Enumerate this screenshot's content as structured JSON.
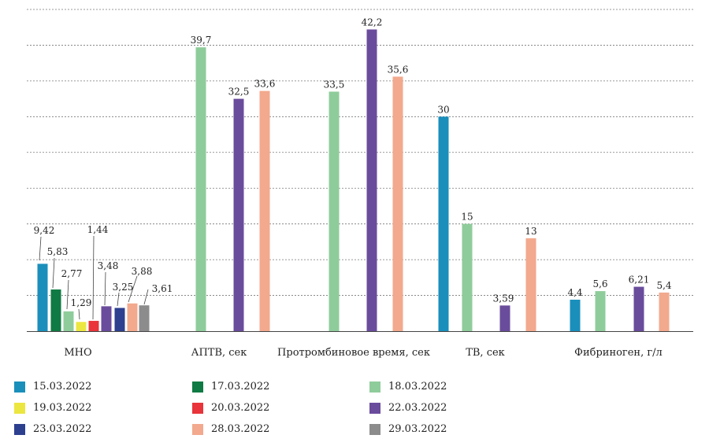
{
  "chart_data": {
    "type": "bar",
    "title": "",
    "xlabel": "",
    "ylabel": "",
    "ylim": [
      0,
      45
    ],
    "y_gridlines": [
      5,
      10,
      15,
      20,
      25,
      30,
      35,
      40,
      45
    ],
    "grid": "horizontal-dashed",
    "legend_placement": "bottom",
    "categories": [
      "МНО",
      "АПТВ, сек",
      "Протромбиновое время, сек",
      "ТВ, сек",
      "Фибриноген, г/л"
    ],
    "series": [
      {
        "name": "15.03.2022",
        "color": "#1a8fbb",
        "values": [
          9.42,
          null,
          null,
          30,
          4.4
        ],
        "labels": [
          "9,42",
          "",
          "",
          "30",
          "4,4"
        ]
      },
      {
        "name": "17.03.2022",
        "color": "#0f7a43",
        "values": [
          5.83,
          null,
          null,
          null,
          null
        ],
        "labels": [
          "5,83",
          "",
          "",
          "",
          ""
        ]
      },
      {
        "name": "18.03.2022",
        "color": "#8fcc9b",
        "values": [
          2.77,
          39.7,
          33.5,
          15,
          5.6
        ],
        "labels": [
          "2,77",
          "39,7",
          "33,5",
          "15",
          "5,6"
        ]
      },
      {
        "name": "19.03.2022",
        "color": "#ece640",
        "values": [
          1.29,
          null,
          null,
          null,
          null
        ],
        "labels": [
          "1,29",
          "",
          "",
          "",
          ""
        ]
      },
      {
        "name": "20.03.2022",
        "color": "#e8343a",
        "values": [
          1.44,
          null,
          null,
          null,
          null
        ],
        "labels": [
          "1,44",
          "",
          "",
          "",
          ""
        ]
      },
      {
        "name": "22.03.2022",
        "color": "#6a4c9c",
        "values": [
          3.48,
          32.5,
          42.2,
          3.59,
          6.21
        ],
        "labels": [
          "3,48",
          "32,5",
          "42,2",
          "3,59",
          "6,21"
        ]
      },
      {
        "name": "23.03.2022",
        "color": "#2d3f8f",
        "values": [
          3.25,
          null,
          null,
          null,
          null
        ],
        "labels": [
          "3,25",
          "",
          "",
          "",
          ""
        ]
      },
      {
        "name": "28.03.2022",
        "color": "#f2a98e",
        "values": [
          3.88,
          33.6,
          35.6,
          13,
          5.4
        ],
        "labels": [
          "3,88",
          "33,6",
          "35,6",
          "13",
          "5,4"
        ]
      },
      {
        "name": "29.03.2022",
        "color": "#8c8c8c",
        "values": [
          3.61,
          null,
          null,
          null,
          null
        ],
        "labels": [
          "3,61",
          "",
          "",
          "",
          ""
        ]
      }
    ]
  }
}
